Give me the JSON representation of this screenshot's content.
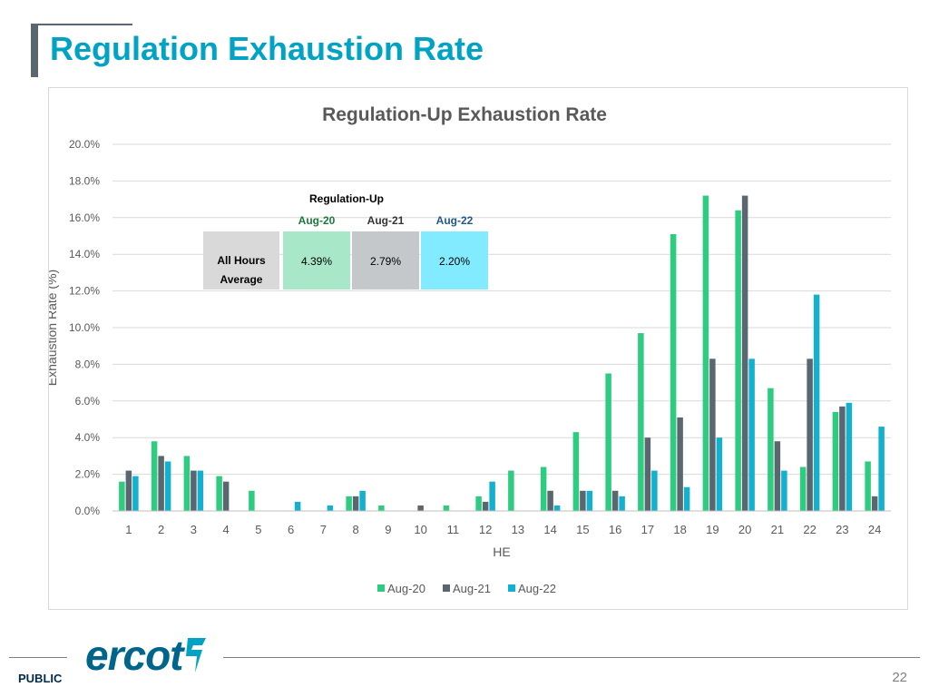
{
  "slide": {
    "title": "Regulation Exhaustion Rate",
    "footer_label": "PUBLIC",
    "page_number": "22",
    "logo_text": "ercot"
  },
  "colors": {
    "title": "#00a3c4",
    "aug20": "#2ecc80",
    "aug21": "#5b6770",
    "aug22": "#14b1cf"
  },
  "summary_table": {
    "title": "Regulation-Up",
    "row_label": "All Hours Average",
    "columns": [
      {
        "label": "Aug-20",
        "value": "4.39%",
        "label_color": "#1a7a3c",
        "cell_color": "#a8e8c8"
      },
      {
        "label": "Aug-21",
        "value": "2.79%",
        "label_color": "#333333",
        "cell_color": "#c4c8cb"
      },
      {
        "label": "Aug-22",
        "value": "2.20%",
        "label_color": "#1a5a8c",
        "cell_color": "#82ebff"
      }
    ]
  },
  "chart_data": {
    "type": "bar",
    "title": "Regulation-Up Exhaustion Rate",
    "xlabel": "HE",
    "ylabel": "Exhaustion Rate (%)",
    "ylim": [
      0,
      20
    ],
    "yticks": [
      "0.0%",
      "2.0%",
      "4.0%",
      "6.0%",
      "8.0%",
      "10.0%",
      "12.0%",
      "14.0%",
      "16.0%",
      "18.0%",
      "20.0%"
    ],
    "grid": true,
    "legend_position": "bottom",
    "categories": [
      "1",
      "2",
      "3",
      "4",
      "5",
      "6",
      "7",
      "8",
      "9",
      "10",
      "11",
      "12",
      "13",
      "14",
      "15",
      "16",
      "17",
      "18",
      "19",
      "20",
      "21",
      "22",
      "23",
      "24"
    ],
    "series": [
      {
        "name": "Aug-20",
        "color": "#2ecc80",
        "values": [
          1.6,
          3.8,
          3.0,
          1.9,
          1.1,
          0,
          0,
          0.8,
          0.3,
          0,
          0.3,
          0.8,
          2.2,
          2.4,
          4.3,
          7.5,
          9.7,
          15.1,
          17.2,
          16.4,
          6.7,
          2.4,
          5.4,
          2.7
        ]
      },
      {
        "name": "Aug-21",
        "color": "#5b6770",
        "values": [
          2.2,
          3.0,
          2.2,
          1.6,
          0,
          0,
          0,
          0.8,
          0,
          0.3,
          0,
          0.5,
          0,
          1.1,
          1.1,
          1.1,
          4.0,
          5.1,
          8.3,
          17.2,
          3.8,
          8.3,
          5.7,
          0.8
        ]
      },
      {
        "name": "Aug-22",
        "color": "#14b1cf",
        "values": [
          1.9,
          2.7,
          2.2,
          0,
          0,
          0.5,
          0.3,
          1.1,
          0,
          0,
          0,
          1.6,
          0,
          0.3,
          1.1,
          0.8,
          2.2,
          1.3,
          4.0,
          8.3,
          2.2,
          11.8,
          5.9,
          4.6
        ]
      }
    ]
  }
}
